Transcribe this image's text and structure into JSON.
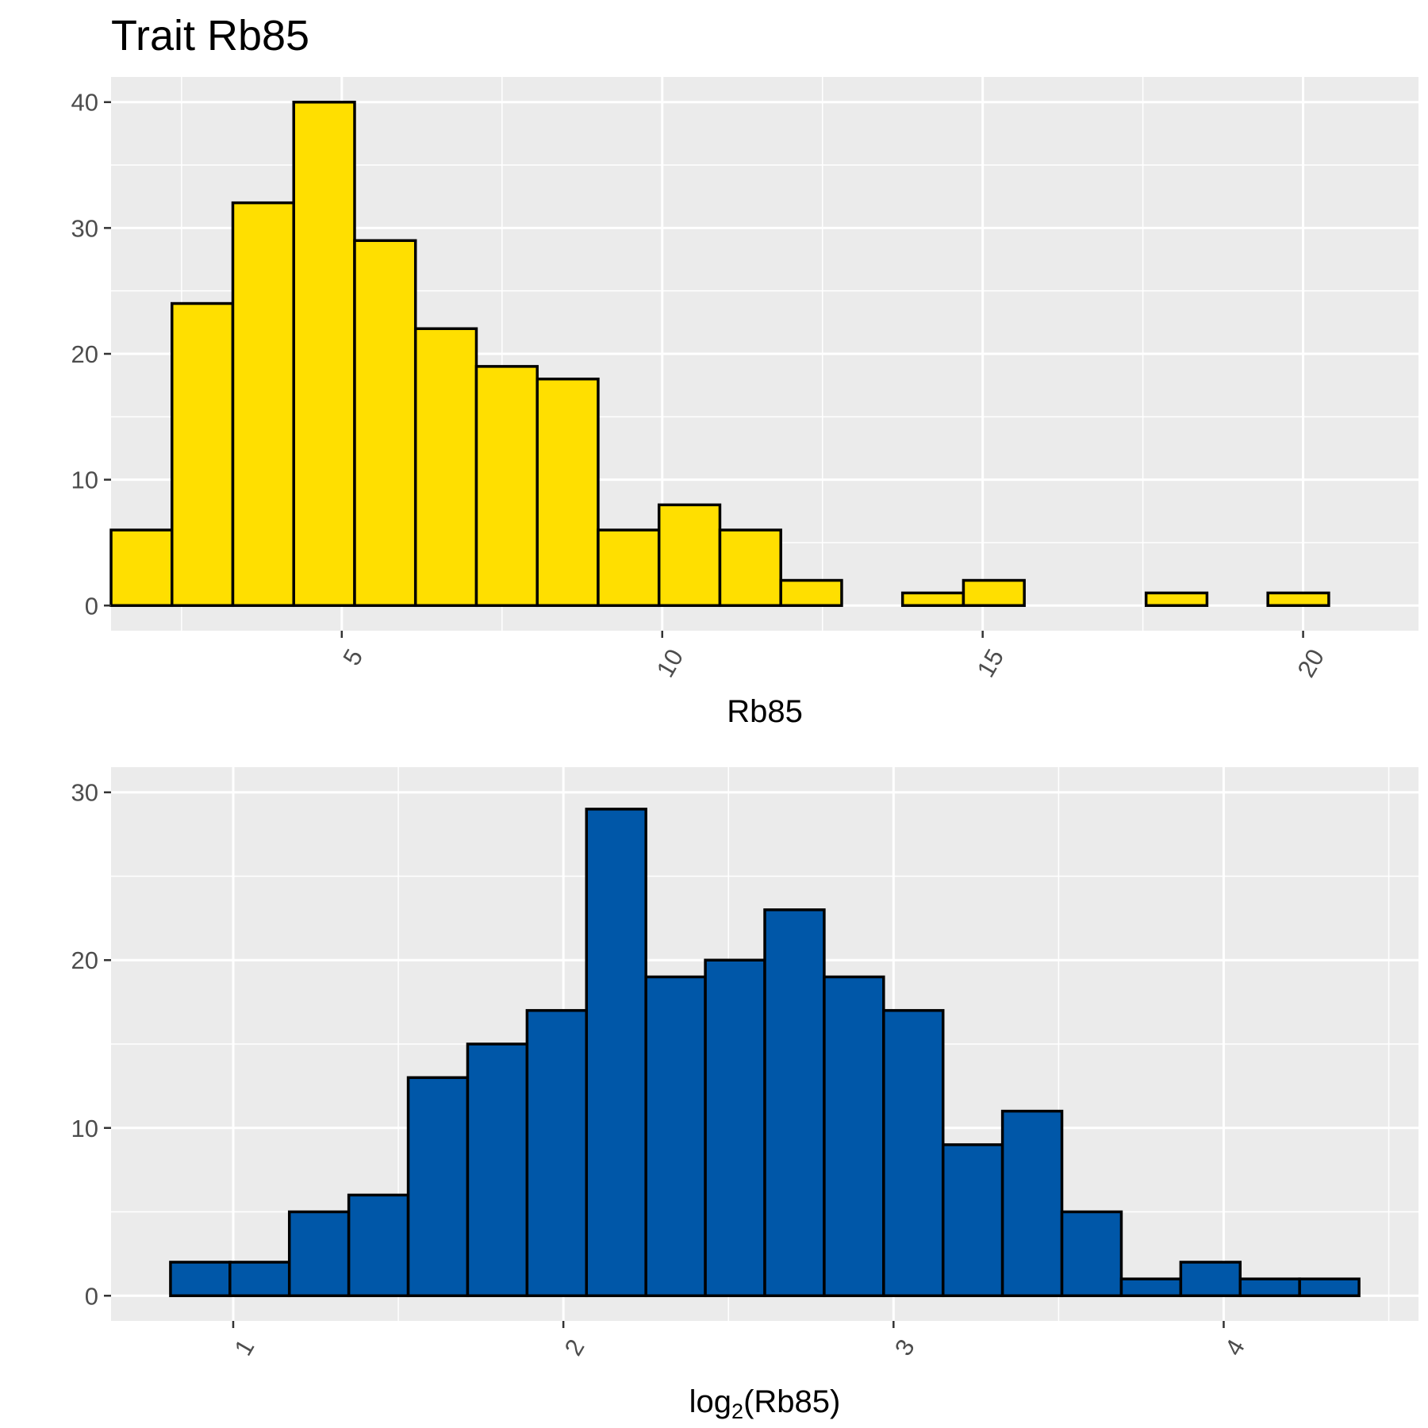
{
  "title": "Trait Rb85",
  "chart_data": [
    {
      "type": "bar",
      "subtype": "histogram",
      "xlabel": "Rb85",
      "ylabel": "",
      "fill_color": "#FFDF00",
      "edge_color": "#000000",
      "bin_width": 0.95,
      "bin_start": 1.4,
      "counts": [
        6,
        24,
        32,
        40,
        29,
        22,
        19,
        18,
        6,
        8,
        6,
        2,
        0,
        1,
        2,
        0,
        0,
        1,
        0,
        1
      ],
      "xlim": [
        1.4,
        21.8
      ],
      "ylim": [
        -2,
        42
      ],
      "x_ticks": [
        5,
        10,
        15,
        20
      ],
      "x_tick_labels": [
        "5",
        "10",
        "15",
        "20"
      ],
      "y_ticks": [
        0,
        10,
        20,
        30,
        40
      ],
      "y_tick_labels": [
        "0",
        "10",
        "20",
        "30",
        "40"
      ],
      "grid": true
    },
    {
      "type": "bar",
      "subtype": "histogram",
      "xlabel": "log",
      "xlabel_subscript": "2",
      "xlabel_suffix": "(Rb85)",
      "ylabel": "",
      "fill_color": "#0057A8",
      "edge_color": "#000000",
      "bin_width": 0.18,
      "bin_start": 0.81,
      "counts": [
        2,
        2,
        5,
        6,
        13,
        15,
        17,
        29,
        19,
        20,
        23,
        19,
        17,
        9,
        11,
        5,
        1,
        2,
        1,
        1
      ],
      "xlim": [
        0.63,
        4.59
      ],
      "ylim": [
        -1.5,
        31.5
      ],
      "x_ticks": [
        1,
        2,
        3,
        4
      ],
      "x_tick_labels": [
        "1",
        "2",
        "3",
        "4"
      ],
      "y_ticks": [
        0,
        10,
        20,
        30
      ],
      "y_tick_labels": [
        "0",
        "10",
        "20",
        "30"
      ],
      "grid": true
    }
  ]
}
